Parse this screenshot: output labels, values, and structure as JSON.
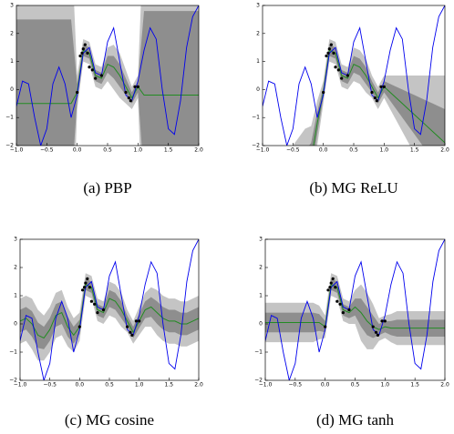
{
  "chart_data": [
    {
      "type": "line",
      "caption": "(a) PBP",
      "x": [
        -1.0,
        -0.9,
        -0.8,
        -0.7,
        -0.6,
        -0.5,
        -0.4,
        -0.3,
        -0.2,
        -0.1,
        0.0,
        0.1,
        0.2,
        0.3,
        0.4,
        0.5,
        0.6,
        0.7,
        0.8,
        0.9,
        1.0,
        1.1,
        1.2,
        1.3,
        1.4,
        1.5,
        1.6,
        1.7,
        1.8,
        1.9,
        2.0
      ],
      "xlim": [
        -1.0,
        2.0
      ],
      "xticks": [
        {
          "value": -1.0,
          "label": "−1.0"
        },
        {
          "value": -0.5,
          "label": "−0.5"
        },
        {
          "value": 0.0,
          "label": "0.0"
        },
        {
          "value": 0.5,
          "label": "0.5"
        },
        {
          "value": 1.0,
          "label": "1.0"
        },
        {
          "value": 1.5,
          "label": "1.5"
        },
        {
          "value": 2.0,
          "label": "2.0"
        }
      ],
      "ylim": [
        -2,
        3
      ],
      "yticks": [
        {
          "value": -2,
          "label": "−2"
        },
        {
          "value": -1,
          "label": "−1"
        },
        0,
        1,
        2,
        3
      ],
      "true_function": {
        "color": "#0000ee",
        "values": [
          -0.6,
          0.3,
          0.2,
          -1.0,
          -2.0,
          -1.4,
          0.2,
          0.8,
          0.2,
          -1.0,
          -0.2,
          1.3,
          1.5,
          0.6,
          0.5,
          1.7,
          2.2,
          1.0,
          -0.2,
          -0.4,
          0.3,
          1.4,
          2.2,
          1.8,
          0.0,
          -1.4,
          -1.6,
          -0.4,
          1.5,
          2.6,
          3.0
        ]
      },
      "mean": {
        "color": "#228b22",
        "values": [
          -0.5,
          -0.5,
          -0.5,
          -0.5,
          -0.5,
          -0.5,
          -0.5,
          -0.5,
          -0.5,
          -0.5,
          -0.1,
          1.4,
          1.3,
          0.5,
          0.4,
          0.9,
          0.8,
          0.5,
          0.1,
          -0.3,
          0.1,
          -0.2,
          -0.2,
          -0.2,
          -0.2,
          -0.2,
          -0.2,
          -0.2,
          -0.2,
          -0.2,
          -0.2
        ]
      },
      "std": [
        3,
        3,
        3,
        3,
        3,
        3,
        3,
        3,
        3,
        3,
        0.3,
        0.2,
        0.2,
        0.2,
        0.2,
        0.3,
        0.4,
        0.4,
        0.3,
        0.2,
        0.2,
        3,
        3,
        3,
        3,
        3,
        3,
        3,
        3,
        3,
        3
      ],
      "band_colors": [
        "#c4c4c4",
        "#8e8e8e"
      ],
      "points": {
        "color": "#000000",
        "x": [
          0.0,
          0.05,
          0.08,
          0.1,
          0.13,
          0.17,
          0.2,
          0.25,
          0.3,
          0.4,
          0.8,
          0.85,
          0.88,
          0.95,
          1.0
        ],
        "y": [
          -0.1,
          1.2,
          1.3,
          1.45,
          1.6,
          1.3,
          0.8,
          0.7,
          0.4,
          0.5,
          -0.1,
          -0.3,
          -0.4,
          0.1,
          0.1
        ]
      }
    },
    {
      "type": "line",
      "caption": "(b) MG ReLU",
      "x": [
        -1.0,
        -0.9,
        -0.8,
        -0.7,
        -0.6,
        -0.5,
        -0.4,
        -0.3,
        -0.2,
        -0.1,
        0.0,
        0.1,
        0.2,
        0.3,
        0.4,
        0.5,
        0.6,
        0.7,
        0.8,
        0.9,
        1.0,
        1.1,
        1.2,
        1.3,
        1.4,
        1.5,
        1.6,
        1.7,
        1.8,
        1.9,
        2.0
      ],
      "xlim": [
        -1.0,
        2.0
      ],
      "xticks": [
        {
          "value": -1.0,
          "label": "−1.0"
        },
        {
          "value": -0.5,
          "label": "−0.5"
        },
        {
          "value": 0.0,
          "label": "0.0"
        },
        {
          "value": 0.5,
          "label": "0.5"
        },
        {
          "value": 1.0,
          "label": "1.0"
        },
        {
          "value": 1.5,
          "label": "1.5"
        },
        {
          "value": 2.0,
          "label": "2.0"
        }
      ],
      "ylim": [
        -2,
        3
      ],
      "yticks": [
        {
          "value": -2,
          "label": "−2"
        },
        {
          "value": -1,
          "label": "−1"
        },
        0,
        1,
        2,
        3
      ],
      "true_function": {
        "color": "#0000ee",
        "values": [
          -0.6,
          0.3,
          0.2,
          -1.0,
          -2.0,
          -1.4,
          0.2,
          0.8,
          0.2,
          -1.0,
          -0.2,
          1.3,
          1.5,
          0.6,
          0.5,
          1.7,
          2.2,
          1.0,
          -0.2,
          -0.4,
          0.3,
          1.4,
          2.2,
          1.8,
          0.0,
          -1.4,
          -1.6,
          -0.4,
          1.5,
          2.6,
          3.0
        ]
      },
      "mean": {
        "color": "#228b22",
        "values": [
          -6.5,
          -6,
          -5.5,
          -5,
          -4.5,
          -4,
          -3.5,
          -3,
          -2.5,
          -1.2,
          -0.1,
          1.4,
          1.3,
          0.5,
          0.4,
          0.9,
          0.8,
          0.5,
          0.1,
          -0.3,
          0.1,
          -0.1,
          -0.3,
          -0.5,
          -0.7,
          -0.9,
          -1.1,
          -1.3,
          -1.5,
          -1.7,
          -1.9
        ]
      },
      "std": [
        1.5,
        1.4,
        1.3,
        1.2,
        1.1,
        1.0,
        0.9,
        0.8,
        0.6,
        0.4,
        0.2,
        0.2,
        0.2,
        0.2,
        0.2,
        0.3,
        0.3,
        0.3,
        0.2,
        0.2,
        0.2,
        0.3,
        0.4,
        0.5,
        0.6,
        0.7,
        0.8,
        0.9,
        1.0,
        1.1,
        1.2
      ],
      "band_colors": [
        "#c4c4c4",
        "#8e8e8e"
      ],
      "points": {
        "color": "#000000",
        "x": [
          0.0,
          0.05,
          0.08,
          0.1,
          0.13,
          0.17,
          0.2,
          0.25,
          0.3,
          0.4,
          0.8,
          0.85,
          0.88,
          0.95,
          1.0
        ],
        "y": [
          -0.1,
          1.2,
          1.3,
          1.45,
          1.6,
          1.3,
          0.8,
          0.7,
          0.4,
          0.5,
          -0.1,
          -0.3,
          -0.4,
          0.1,
          0.1
        ]
      }
    },
    {
      "type": "line",
      "caption": "(c) MG cosine",
      "x": [
        -1.0,
        -0.9,
        -0.8,
        -0.7,
        -0.6,
        -0.5,
        -0.4,
        -0.3,
        -0.2,
        -0.1,
        0.0,
        0.1,
        0.2,
        0.3,
        0.4,
        0.5,
        0.6,
        0.7,
        0.8,
        0.9,
        1.0,
        1.1,
        1.2,
        1.3,
        1.4,
        1.5,
        1.6,
        1.7,
        1.8,
        1.9,
        2.0
      ],
      "xlim": [
        -1.0,
        2.0
      ],
      "xticks": [
        {
          "value": -1.0,
          "label": "−1.0"
        },
        {
          "value": -0.5,
          "label": "−0.5"
        },
        {
          "value": 0.0,
          "label": "0.0"
        },
        {
          "value": 0.5,
          "label": "0.5"
        },
        {
          "value": 1.0,
          "label": "1.0"
        },
        {
          "value": 1.5,
          "label": "1.5"
        },
        {
          "value": 2.0,
          "label": "2.0"
        }
      ],
      "ylim": [
        -2,
        3
      ],
      "yticks": [
        {
          "value": -2,
          "label": "−2"
        },
        {
          "value": -1,
          "label": "−1"
        },
        0,
        1,
        2,
        3
      ],
      "true_function": {
        "color": "#0000ee",
        "values": [
          -0.6,
          0.3,
          0.2,
          -1.0,
          -2.0,
          -1.4,
          0.2,
          0.8,
          0.2,
          -1.0,
          -0.2,
          1.3,
          1.5,
          0.6,
          0.5,
          1.7,
          2.2,
          1.0,
          -0.2,
          -0.4,
          0.3,
          1.4,
          2.2,
          1.8,
          0.0,
          -1.4,
          -1.6,
          -0.4,
          1.5,
          2.6,
          3.0
        ]
      },
      "mean": {
        "color": "#228b22",
        "values": [
          0.1,
          0.2,
          0.0,
          -0.4,
          -0.5,
          -0.2,
          0.3,
          0.4,
          -0.1,
          -0.4,
          -0.1,
          1.4,
          1.3,
          0.5,
          0.4,
          0.9,
          0.8,
          0.5,
          0.1,
          -0.3,
          0.1,
          0.5,
          0.6,
          0.4,
          0.2,
          0.1,
          0.1,
          0.0,
          0.0,
          0.1,
          0.2
        ]
      },
      "std": [
        0.4,
        0.4,
        0.45,
        0.45,
        0.4,
        0.4,
        0.4,
        0.4,
        0.35,
        0.3,
        0.25,
        0.2,
        0.2,
        0.2,
        0.2,
        0.3,
        0.3,
        0.3,
        0.2,
        0.2,
        0.25,
        0.3,
        0.35,
        0.4,
        0.4,
        0.4,
        0.4,
        0.4,
        0.4,
        0.4,
        0.4
      ],
      "band_colors": [
        "#c4c4c4",
        "#8e8e8e"
      ],
      "points": {
        "color": "#000000",
        "x": [
          0.0,
          0.05,
          0.08,
          0.1,
          0.13,
          0.17,
          0.2,
          0.25,
          0.3,
          0.4,
          0.8,
          0.85,
          0.88,
          0.95,
          1.0
        ],
        "y": [
          -0.1,
          1.2,
          1.3,
          1.45,
          1.6,
          1.3,
          0.8,
          0.7,
          0.4,
          0.5,
          -0.1,
          -0.3,
          -0.4,
          0.1,
          0.1
        ]
      }
    },
    {
      "type": "line",
      "caption": "(d) MG tanh",
      "x": [
        -1.0,
        -0.9,
        -0.8,
        -0.7,
        -0.6,
        -0.5,
        -0.4,
        -0.3,
        -0.2,
        -0.1,
        0.0,
        0.1,
        0.2,
        0.3,
        0.4,
        0.5,
        0.6,
        0.7,
        0.8,
        0.9,
        1.0,
        1.1,
        1.2,
        1.3,
        1.4,
        1.5,
        1.6,
        1.7,
        1.8,
        1.9,
        2.0
      ],
      "xlim": [
        -1.0,
        2.0
      ],
      "xticks": [
        {
          "value": -1.0,
          "label": "−1.0"
        },
        {
          "value": -0.5,
          "label": "−0.5"
        },
        {
          "value": 0.0,
          "label": "0.0"
        },
        {
          "value": 0.5,
          "label": "0.5"
        },
        {
          "value": 1.0,
          "label": "1.0"
        },
        {
          "value": 1.5,
          "label": "1.5"
        },
        {
          "value": 2.0,
          "label": "2.0"
        }
      ],
      "ylim": [
        -2,
        3
      ],
      "yticks": [
        {
          "value": -2,
          "label": "−2"
        },
        {
          "value": -1,
          "label": "−1"
        },
        0,
        1,
        2,
        3
      ],
      "true_function": {
        "color": "#0000ee",
        "values": [
          -0.6,
          0.3,
          0.2,
          -1.0,
          -2.0,
          -1.4,
          0.2,
          0.8,
          0.2,
          -1.0,
          -0.2,
          1.3,
          1.5,
          0.6,
          0.5,
          1.7,
          2.2,
          1.0,
          -0.2,
          -0.4,
          0.3,
          1.4,
          2.2,
          1.8,
          0.0,
          -1.4,
          -1.6,
          -0.4,
          1.5,
          2.6,
          3.0
        ]
      },
      "mean": {
        "color": "#228b22",
        "values": [
          0.05,
          0.05,
          0.05,
          0.05,
          0.05,
          0.05,
          0.05,
          0.05,
          0.05,
          0.05,
          -0.1,
          1.4,
          1.3,
          0.5,
          0.4,
          0.6,
          0.4,
          0.1,
          -0.1,
          -0.2,
          -0.1,
          -0.15,
          -0.15,
          -0.15,
          -0.15,
          -0.15,
          -0.15,
          -0.15,
          -0.15,
          -0.15,
          -0.15
        ]
      },
      "std": [
        0.35,
        0.35,
        0.35,
        0.35,
        0.35,
        0.35,
        0.35,
        0.35,
        0.35,
        0.3,
        0.2,
        0.2,
        0.2,
        0.2,
        0.2,
        0.3,
        0.5,
        0.5,
        0.4,
        0.2,
        0.2,
        0.25,
        0.3,
        0.3,
        0.3,
        0.3,
        0.3,
        0.3,
        0.3,
        0.3,
        0.3
      ],
      "band_colors": [
        "#c4c4c4",
        "#8e8e8e"
      ],
      "points": {
        "color": "#000000",
        "x": [
          0.0,
          0.05,
          0.08,
          0.1,
          0.13,
          0.17,
          0.2,
          0.25,
          0.3,
          0.4,
          0.8,
          0.85,
          0.88,
          0.95,
          1.0
        ],
        "y": [
          -0.1,
          1.2,
          1.3,
          1.45,
          1.6,
          1.3,
          0.8,
          0.7,
          0.4,
          0.5,
          -0.1,
          -0.3,
          -0.4,
          0.1,
          0.1
        ]
      }
    }
  ]
}
